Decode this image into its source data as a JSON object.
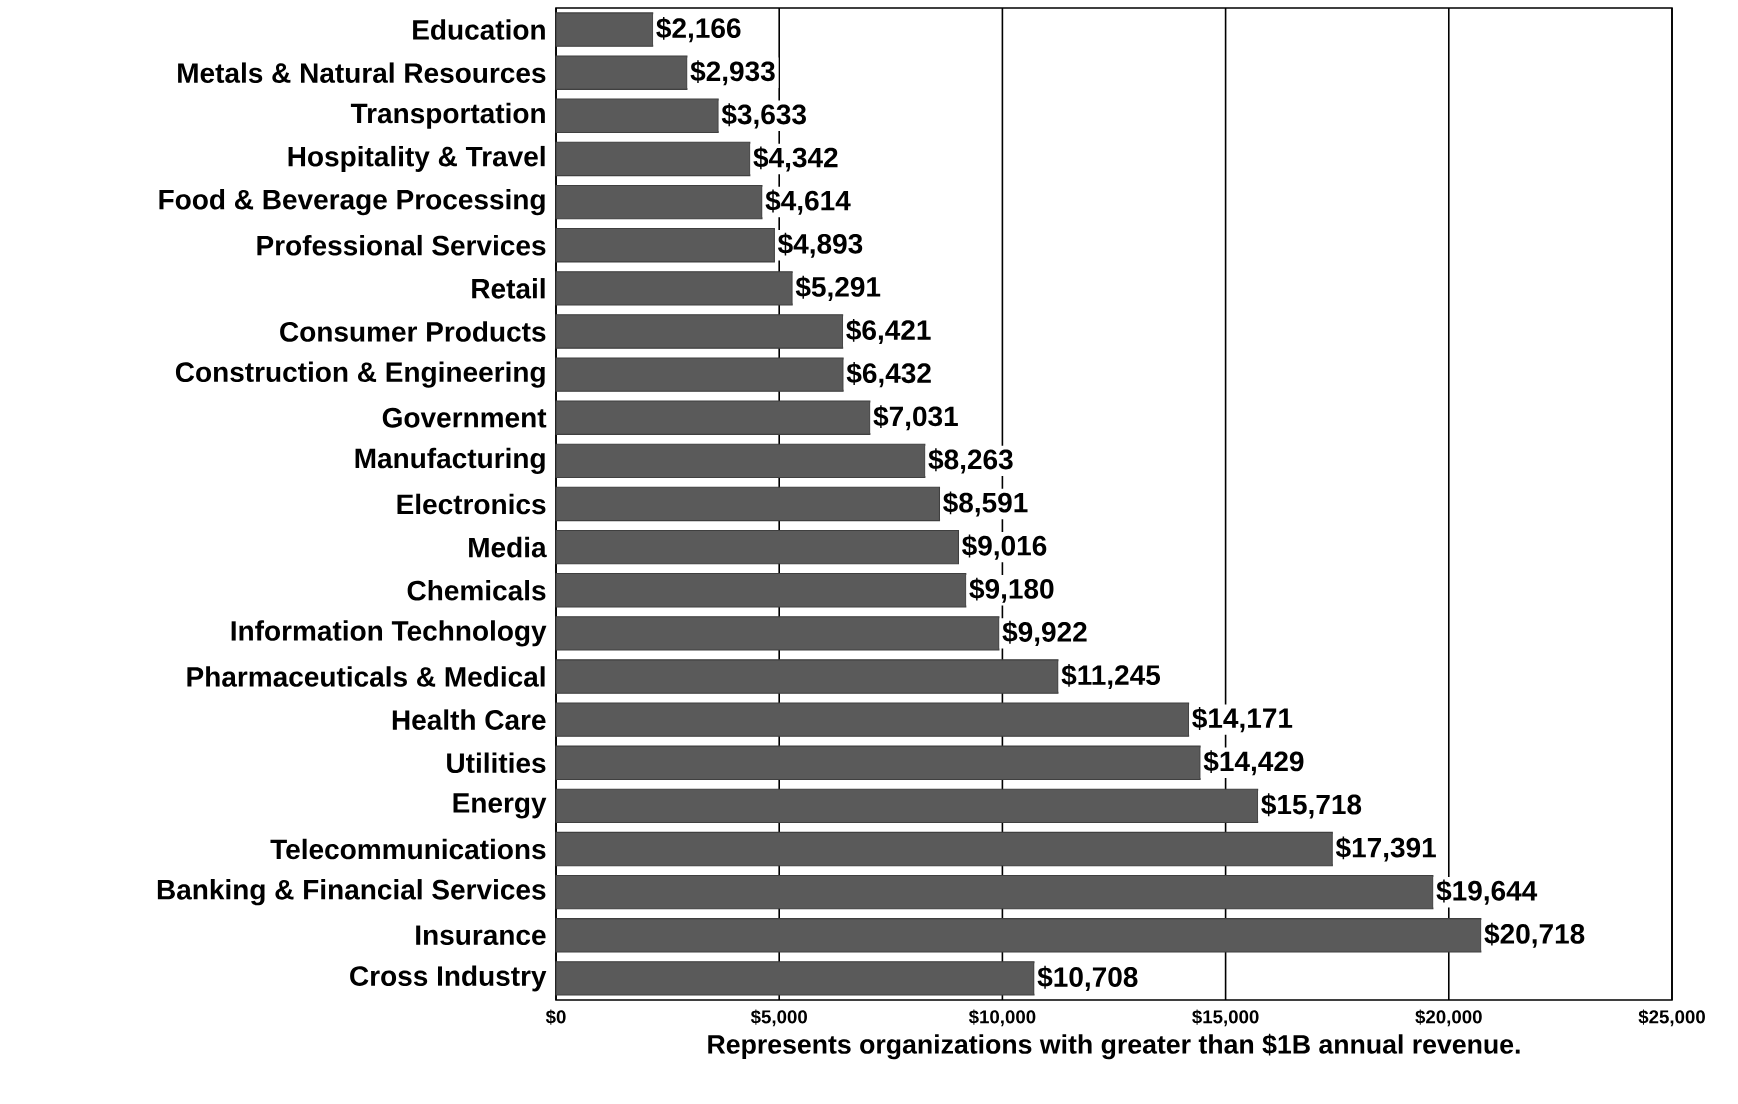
{
  "chart_data": {
    "type": "bar",
    "orientation": "horizontal",
    "xlabel": "Represents organizations with greater than $1B annual revenue.",
    "categories": [
      "Education",
      "Metals & Natural Resources",
      "Transportation",
      "Hospitality & Travel",
      "Food & Beverage Processing",
      "Professional Services",
      "Retail",
      "Consumer Products",
      "Construction & Engineering",
      "Government",
      "Manufacturing",
      "Electronics",
      "Media",
      "Chemicals",
      "Information Technology",
      "Pharmaceuticals & Medical",
      "Health Care",
      "Utilities",
      "Energy",
      "Telecommunications",
      "Banking & Financial Services",
      "Insurance",
      "Cross Industry"
    ],
    "values": [
      2166,
      2933,
      3633,
      4342,
      4614,
      4893,
      5291,
      6421,
      6432,
      7031,
      8263,
      8591,
      9016,
      9180,
      9922,
      11245,
      14171,
      14429,
      15718,
      17391,
      19644,
      20718,
      10708
    ],
    "value_labels": [
      "$2,166",
      "$2,933",
      "$3,633",
      "$4,342",
      "$4,614",
      "$4,893",
      "$5,291",
      "$6,421",
      "$6,432",
      "$7,031",
      "$8,263",
      "$8,591",
      "$9,016",
      "$9,180",
      "$9,922",
      "$11,245",
      "$14,171",
      "$14,429",
      "$15,718",
      "$17,391",
      "$19,644",
      "$20,718",
      "$10,708"
    ],
    "color": "#5a5a5a",
    "xlim": [
      0,
      25000
    ],
    "xticks": [
      {
        "value": 0,
        "label": "$0"
      },
      {
        "value": 5000,
        "label": "$5,000"
      },
      {
        "value": 10000,
        "label": "$10,000"
      },
      {
        "value": 15000,
        "label": "$15,000"
      },
      {
        "value": 20000,
        "label": "$20,000"
      },
      {
        "value": 25000,
        "label": "$25,000"
      }
    ],
    "grid": "x"
  }
}
